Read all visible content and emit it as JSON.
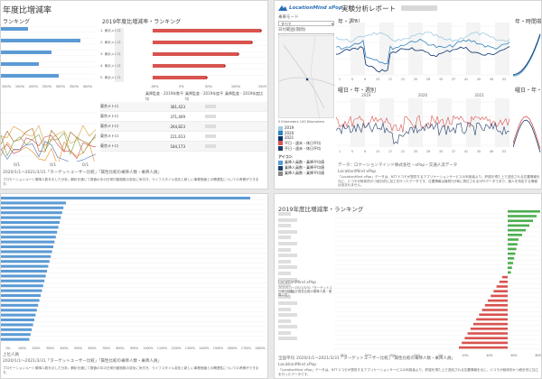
{
  "colors": {
    "blue": "#5b9bd5",
    "navy": "#1f3d6b",
    "red": "#d9534f",
    "green": "#4caf50",
    "grid": "#e6e6e6"
  },
  "p1": {
    "title": "年度比増減率",
    "subtitle": "ランキング",
    "right_title": "2019年度比増減率・ランキング",
    "axis_ticks": [
      "100%",
      "150%",
      "200%",
      "250%",
      "300%",
      "350%",
      "400%",
      "450%",
      "500%"
    ],
    "right_ticks": [
      "-50%",
      "0%",
      "50%",
      "100%",
      "150%"
    ],
    "right_labels": [
      "1. 東京メトロ",
      "2. 東京メトロ",
      "3. 東京メトロ",
      "4. 東京メトロ",
      "5. 東京メトロ"
    ],
    "table_headers": [
      "乗降監査 - 2019年数平均",
      "乗降監査 - 2019年度平均",
      "乗降監査 - 2019年度比"
    ],
    "table_rows": [
      {
        "name": "東京メトロ",
        "v1": "381,423"
      },
      {
        "name": "東京メトロ",
        "v1": "371,409"
      },
      {
        "name": "東京メトロ",
        "v1": "264,823"
      },
      {
        "name": "東京メトロ",
        "v1": "211,613"
      },
      {
        "name": "東京メトロ",
        "v1": "184,173"
      }
    ],
    "line_x_ticks": [
      "0/1",
      "0/1",
      "0/1"
    ],
    "caption": "2020/1/1〜2021/3/31「ターゲットユーザー比較」「属性比較の乗降人数・乗降人員」",
    "footnote": "プロモーションルート乗降人数を示した分析。解析を通じて数値の中の日常行動指数の変化に気付き、ライフスタイル変化と新しい事業価値との関連性についての考察ができます。"
  },
  "p2": {
    "logo": "LocationMind xPop",
    "title": "実験分析レポート",
    "filter1_label": "乗車モード",
    "filter1_value": "すべて",
    "filter2_label": "日付範囲(期間)",
    "filter2_value": "すべて",
    "chart1_title": "年・週別",
    "chart2_title": "年・時間帯別",
    "chart3_title": "曜日・年・週別",
    "chart4_title": "曜日・年・時間帯別",
    "year_ticks": [
      "2019",
      "2020",
      "2021"
    ],
    "x_ticks": [
      "1",
      "5",
      "9",
      "13",
      "17",
      "21",
      "25",
      "29",
      "33",
      "37",
      "41",
      "45",
      "49",
      "53"
    ],
    "scale_label": "0 Kilometers  100 Kilometers",
    "legend_years": [
      "2019",
      "2020",
      "2021"
    ],
    "legend_weekday": [
      "平日・週末・休日平均",
      "平日・週末・休日平均"
    ],
    "legend2_title": "アイコン",
    "legend2_items": [
      "乗降人員数・乗降平均値",
      "乗降人員数・乗降平均値",
      "乗降人員数・乗降平均値"
    ],
    "caption": "データ：ロケーションマインド株式会社・xPop・交通人流データ",
    "footnote_title": "LocationMind xPop",
    "footnote": "「LocationMind xPop」データは、NTTドコモが提供するアプリケーションサービスの利用者より、許諾を得た上で送信される位置情報を元に、ドコモが総体的かつ統計的に加工を行ったデータです。位置情報は最短5分毎に測位されるGPSデータであり、個人を特定する情報は含まれません。"
  },
  "p3": {
    "ticks": [
      "0%",
      "100%",
      "200%",
      "300%",
      "400%",
      "500%",
      "600%",
      "700%",
      "800%",
      "900%",
      "1000%",
      "1100%",
      "1200%",
      "1300%",
      "1400%",
      "1500%",
      "1600%",
      "1700%",
      "1800%"
    ],
    "caption_title": "上位人員",
    "caption": "2020/1/1〜2021/3/31「ターゲットユーザー比較」「属性比較の乗降人数・乗降人員」",
    "footnote": "プロモーションルート乗降人数を示した分析。解析を通じて数値の中の日常行動指数の変化に気付き、ライフスタイル変化と新しい事業価値との関連性についての考察ができます。"
  },
  "p4": {
    "title": "2019年度比増減率・ランキング",
    "ticks": [
      "-80%",
      "-60%",
      "-40%",
      "-20%",
      "0%",
      "20%",
      "40%",
      "60%",
      "80%"
    ],
    "mid_note": "LocationMind xPop",
    "mid_caption": "2020/1/1〜2021/3/31「ターゲットユーザー比較」「属性比較の乗降人数・乗降人員」",
    "bottom_caption": "2020/1/1〜2021/3/31「ターゲットユーザー比較」「属性比較の乗降人数・乗降人員」",
    "bottom_caption_label": "全国平均",
    "footnote_title": "LocationMind xPop",
    "footnote": "「LocationMind xPop」データは、NTTドコモが提供するアプリケーションサービスの利用者より、許諾を得た上で送信される位置情報を元に、ドコモが総体的かつ統計的に加工を行ったデータです。"
  }
}
